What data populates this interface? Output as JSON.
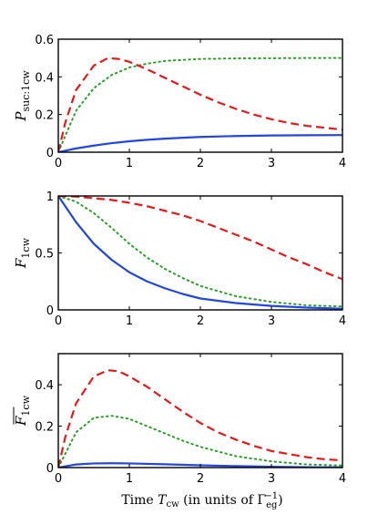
{
  "xlabel": {
    "prefix": "Time ",
    "var": "T",
    "var_sub": "cw",
    "middle": " (in units of Γ",
    "gamma_sub": "eg",
    "gamma_sup": "−1",
    "suffix": ")"
  },
  "series_styles": [
    {
      "id": "blue-solid",
      "color": "#2346e0",
      "dash": "solid"
    },
    {
      "id": "green-dotted",
      "color": "#2aa02a",
      "dash": "dotted"
    },
    {
      "id": "red-dashed",
      "color": "#e41a1c",
      "dash": "dashed"
    }
  ],
  "chart_data": [
    {
      "type": "line",
      "panel": "top",
      "ylabel": {
        "main": "P",
        "sub": "suc:1cw"
      },
      "xlim": [
        0,
        4
      ],
      "ylim": [
        0,
        0.6
      ],
      "xticks": [
        "0",
        "1",
        "2",
        "3",
        "4"
      ],
      "yticks": [
        "0",
        "0.2",
        "0.4",
        "0.6"
      ],
      "grid": false,
      "series": [
        {
          "style": "blue-solid",
          "x": [
            0,
            0.25,
            0.5,
            0.75,
            1,
            1.25,
            1.5,
            1.75,
            2,
            2.5,
            3,
            3.5,
            4
          ],
          "y": [
            0,
            0.02,
            0.035,
            0.048,
            0.058,
            0.066,
            0.072,
            0.077,
            0.081,
            0.086,
            0.089,
            0.09,
            0.091
          ]
        },
        {
          "style": "green-dotted",
          "x": [
            0,
            0.25,
            0.5,
            0.75,
            1,
            1.25,
            1.5,
            1.75,
            2,
            2.5,
            3,
            3.5,
            4
          ],
          "y": [
            0,
            0.22,
            0.34,
            0.41,
            0.45,
            0.47,
            0.485,
            0.49,
            0.495,
            0.498,
            0.499,
            0.5,
            0.5
          ]
        },
        {
          "style": "red-dashed",
          "x": [
            0,
            0.1,
            0.25,
            0.5,
            0.7,
            0.85,
            1,
            1.25,
            1.5,
            1.75,
            2,
            2.25,
            2.5,
            2.75,
            3,
            3.25,
            3.5,
            3.75,
            4
          ],
          "y": [
            0,
            0.16,
            0.33,
            0.46,
            0.5,
            0.495,
            0.48,
            0.44,
            0.395,
            0.35,
            0.305,
            0.265,
            0.23,
            0.2,
            0.175,
            0.155,
            0.14,
            0.13,
            0.12
          ]
        }
      ]
    },
    {
      "type": "line",
      "panel": "middle",
      "ylabel": {
        "main": "F",
        "sub": "1cw"
      },
      "xlim": [
        0,
        4
      ],
      "ylim": [
        0,
        1
      ],
      "xticks": [
        "0",
        "1",
        "2",
        "3",
        "4"
      ],
      "yticks": [
        "0",
        "0.5",
        "1"
      ],
      "grid": false,
      "series": [
        {
          "style": "blue-solid",
          "x": [
            0,
            0.25,
            0.5,
            0.75,
            1,
            1.25,
            1.5,
            1.75,
            2,
            2.5,
            3,
            3.5,
            4
          ],
          "y": [
            1,
            0.77,
            0.58,
            0.44,
            0.33,
            0.25,
            0.19,
            0.14,
            0.1,
            0.06,
            0.035,
            0.02,
            0.01
          ]
        },
        {
          "style": "green-dotted",
          "x": [
            0,
            0.25,
            0.5,
            0.75,
            1,
            1.25,
            1.5,
            1.75,
            2,
            2.5,
            3,
            3.5,
            4
          ],
          "y": [
            1,
            0.95,
            0.85,
            0.72,
            0.58,
            0.46,
            0.36,
            0.28,
            0.21,
            0.12,
            0.07,
            0.04,
            0.03
          ]
        },
        {
          "style": "red-dashed",
          "x": [
            0,
            0.25,
            0.5,
            0.75,
            1,
            1.25,
            1.5,
            1.75,
            2,
            2.25,
            2.5,
            2.75,
            3,
            3.25,
            3.5,
            3.75,
            4
          ],
          "y": [
            1,
            0.995,
            0.98,
            0.965,
            0.94,
            0.91,
            0.87,
            0.83,
            0.78,
            0.72,
            0.66,
            0.6,
            0.53,
            0.46,
            0.4,
            0.33,
            0.27
          ]
        }
      ]
    },
    {
      "type": "line",
      "panel": "bottom",
      "ylabel": {
        "main": "F",
        "sub": "1cw",
        "overline": true
      },
      "xlim": [
        0,
        4
      ],
      "ylim": [
        0,
        0.55
      ],
      "xticks": [
        "0",
        "1",
        "2",
        "3",
        "4"
      ],
      "yticks": [
        "0",
        "0.2",
        "0.4"
      ],
      "grid": false,
      "series": [
        {
          "style": "blue-solid",
          "x": [
            0,
            0.25,
            0.5,
            0.75,
            1,
            1.5,
            2,
            2.5,
            3,
            3.5,
            4
          ],
          "y": [
            0,
            0.015,
            0.02,
            0.021,
            0.02,
            0.016,
            0.011,
            0.007,
            0.004,
            0.002,
            0.001
          ]
        },
        {
          "style": "green-dotted",
          "x": [
            0,
            0.25,
            0.5,
            0.75,
            1,
            1.25,
            1.5,
            1.75,
            2,
            2.5,
            3,
            3.5,
            4
          ],
          "y": [
            0,
            0.17,
            0.24,
            0.25,
            0.235,
            0.2,
            0.165,
            0.13,
            0.1,
            0.055,
            0.03,
            0.015,
            0.01
          ]
        },
        {
          "style": "red-dashed",
          "x": [
            0,
            0.1,
            0.25,
            0.5,
            0.7,
            0.85,
            1,
            1.25,
            1.5,
            1.75,
            2,
            2.25,
            2.5,
            2.75,
            3,
            3.25,
            3.5,
            3.75,
            4
          ],
          "y": [
            0,
            0.15,
            0.31,
            0.44,
            0.47,
            0.465,
            0.44,
            0.39,
            0.33,
            0.27,
            0.215,
            0.17,
            0.135,
            0.105,
            0.08,
            0.065,
            0.05,
            0.04,
            0.035
          ]
        }
      ]
    }
  ]
}
